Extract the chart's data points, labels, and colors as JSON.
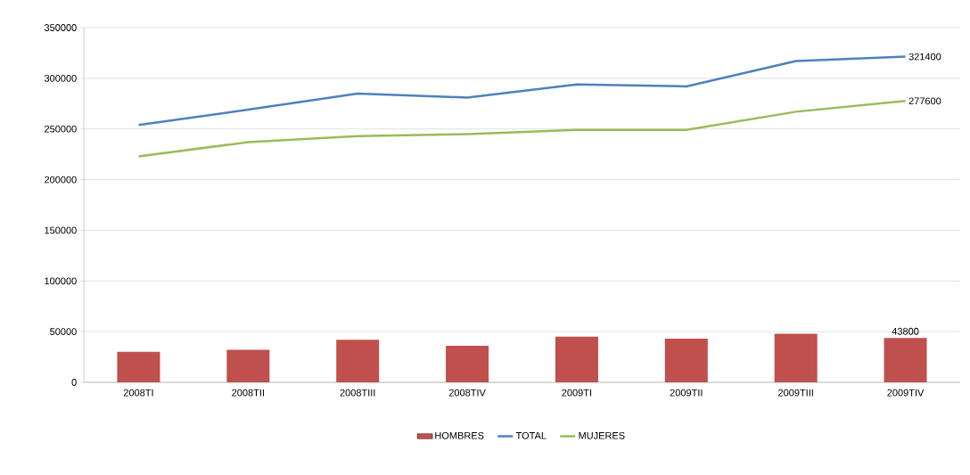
{
  "chart_data": {
    "type": "bar",
    "categories": [
      "2008TI",
      "2008TII",
      "2008TIII",
      "2008TIV",
      "2009TI",
      "2009TII",
      "2009TIII",
      "2009TIV"
    ],
    "series": [
      {
        "name": "HOMBRES",
        "color": "#c0504d",
        "values": [
          30000,
          32000,
          42000,
          36000,
          45000,
          43000,
          48000,
          43800
        ],
        "value_labels": [
          null,
          null,
          null,
          null,
          null,
          null,
          null,
          "43800"
        ]
      },
      {
        "name": "TOTAL",
        "type": "line",
        "color": "#4f81bd",
        "values": [
          254000,
          269000,
          285000,
          281000,
          294000,
          292000,
          317000,
          321400
        ],
        "value_labels": [
          null,
          null,
          null,
          null,
          null,
          null,
          null,
          "321400"
        ]
      },
      {
        "name": "MUJERES",
        "type": "line",
        "color": "#9bbb59",
        "values": [
          223000,
          237000,
          243000,
          245000,
          249000,
          249000,
          267000,
          277600
        ],
        "value_labels": [
          null,
          null,
          null,
          null,
          null,
          null,
          null,
          "277600"
        ]
      }
    ],
    "ylim": [
      0,
      350000
    ],
    "yticks": [
      0,
      50000,
      100000,
      150000,
      200000,
      250000,
      300000,
      350000
    ],
    "grid": "y",
    "legend": "bottom"
  }
}
